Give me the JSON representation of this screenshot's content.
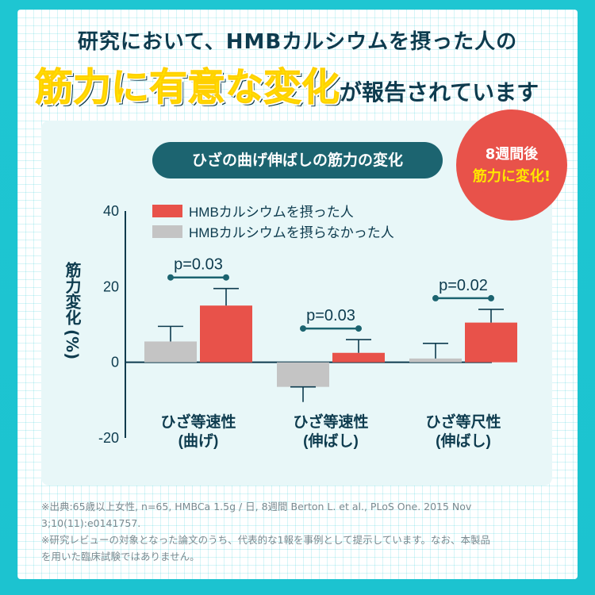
{
  "header": {
    "line1": "研究において、HMBカルシウムを摂った人の",
    "line2_highlight": "筋力に有意な変化",
    "line2_rest": "が報告されています"
  },
  "badge": {
    "line1": "8週間後",
    "line2": "筋力に変化!"
  },
  "panel_title": "ひざの曲げ伸ばしの筋力の変化",
  "chart_data": {
    "type": "bar",
    "ylabel_main": "筋力変化",
    "ylabel_unit": "(%)",
    "ylim": [
      -20,
      40
    ],
    "yticks": [
      40,
      20,
      0,
      -20
    ],
    "categories": [
      {
        "line1": "ひざ等速性",
        "line2": "(曲げ)"
      },
      {
        "line1": "ひざ等速性",
        "line2": "(伸ばし)"
      },
      {
        "line1": "ひざ等尺性",
        "line2": "(伸ばし)"
      }
    ],
    "series": [
      {
        "name": "HMBカルシウムを摂らなかった人",
        "color": "#c4c4c4",
        "values": [
          5.5,
          -6.5,
          1
        ],
        "err_upper": [
          9.5,
          -6.5,
          5
        ],
        "err_lower": [
          5.5,
          -10.5,
          1
        ]
      },
      {
        "name": "HMBカルシウムを摂った人",
        "color": "#e8524a",
        "values": [
          15,
          2.5,
          10.5
        ],
        "err_upper": [
          19.5,
          6,
          14
        ],
        "err_lower": [
          15,
          2.5,
          10.5
        ]
      }
    ],
    "legend_order": [
      1,
      0
    ],
    "pvalues": [
      "p=0.03",
      "p=0.03",
      "p=0.02"
    ],
    "colors": {
      "axis": "#0d3b4e",
      "pline": "#1c6470"
    }
  },
  "footnote": {
    "line1": "※出典:65歳以上女性, n=65, HMBCa 1.5g / 日, 8週間 Berton L. et al., PLoS One. 2015 Nov",
    "line2": "3;10(11):e0141757.",
    "line3": "※研究レビューの対象となった論文のうち、代表的な1報を事例として提示しています。なお、本製品",
    "line4": "を用いた臨床試験ではありません。"
  }
}
